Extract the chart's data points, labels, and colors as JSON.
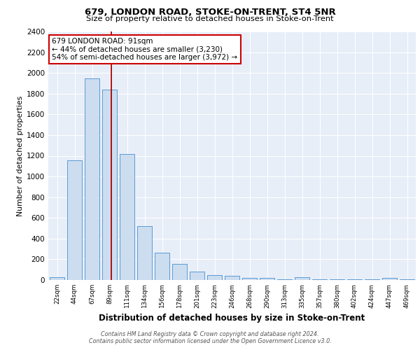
{
  "title1": "679, LONDON ROAD, STOKE-ON-TRENT, ST4 5NR",
  "title2": "Size of property relative to detached houses in Stoke-on-Trent",
  "xlabel": "Distribution of detached houses by size in Stoke-on-Trent",
  "ylabel": "Number of detached properties",
  "bar_labels": [
    "22sqm",
    "44sqm",
    "67sqm",
    "89sqm",
    "111sqm",
    "134sqm",
    "156sqm",
    "178sqm",
    "201sqm",
    "223sqm",
    "246sqm",
    "268sqm",
    "290sqm",
    "313sqm",
    "335sqm",
    "357sqm",
    "380sqm",
    "402sqm",
    "424sqm",
    "447sqm",
    "469sqm"
  ],
  "bar_values": [
    25,
    1155,
    1950,
    1840,
    1215,
    520,
    262,
    155,
    82,
    50,
    40,
    18,
    18,
    5,
    30,
    5,
    5,
    5,
    5,
    20,
    5
  ],
  "bar_color": "#ccddf0",
  "bar_edge_color": "#5b9bd5",
  "vline_color": "#aa0000",
  "annotation_text": "679 LONDON ROAD: 91sqm\n← 44% of detached houses are smaller (3,230)\n54% of semi-detached houses are larger (3,972) →",
  "annotation_box_color": "#ffffff",
  "annotation_box_edge": "#cc0000",
  "ylim": [
    0,
    2400
  ],
  "yticks": [
    0,
    200,
    400,
    600,
    800,
    1000,
    1200,
    1400,
    1600,
    1800,
    2000,
    2200,
    2400
  ],
  "bg_color": "#e8eef8",
  "footer1": "Contains HM Land Registry data © Crown copyright and database right 2024.",
  "footer2": "Contains public sector information licensed under the Open Government Licence v3.0."
}
